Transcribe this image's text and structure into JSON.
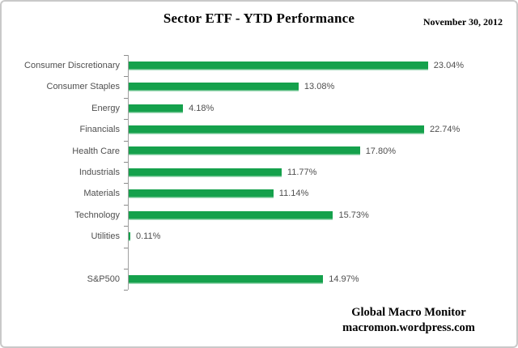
{
  "header": {
    "title": "Sector ETF - YTD Performance",
    "date": "November 30, 2012"
  },
  "footer": {
    "site_name": "Global Macro Monitor",
    "site_url": "macromon.wordpress.com"
  },
  "colors": {
    "bar": "#15a14c",
    "bar_bottom_highlight": "#a9ddbe",
    "axis": "#a0a0a0",
    "tick": "#8c8c8c",
    "label_text": "#4f4f4f",
    "frame_border": "#c9c9c9",
    "title_text": "#000000"
  },
  "chart_data": {
    "type": "bar",
    "orientation": "horizontal",
    "title": "Sector ETF - YTD Performance",
    "xlabel": "",
    "ylabel": "",
    "xlim": [
      0,
      25
    ],
    "grid": false,
    "legend": false,
    "data_labels": true,
    "categories": [
      "Consumer Discretionary",
      "Consumer Staples",
      "Energy",
      "Financials",
      "Health Care",
      "Industrials",
      "Materials",
      "Technology",
      "Utilities",
      "S&P500"
    ],
    "values": [
      23.04,
      13.08,
      4.18,
      22.74,
      17.8,
      11.77,
      11.14,
      15.73,
      0.11,
      14.97
    ],
    "labels": [
      "23.04%",
      "13.08%",
      "4.18%",
      "22.74%",
      "17.80%",
      "11.77%",
      "11.14%",
      "15.73%",
      "0.11%",
      "14.97%"
    ],
    "gap_after_index": 8
  }
}
